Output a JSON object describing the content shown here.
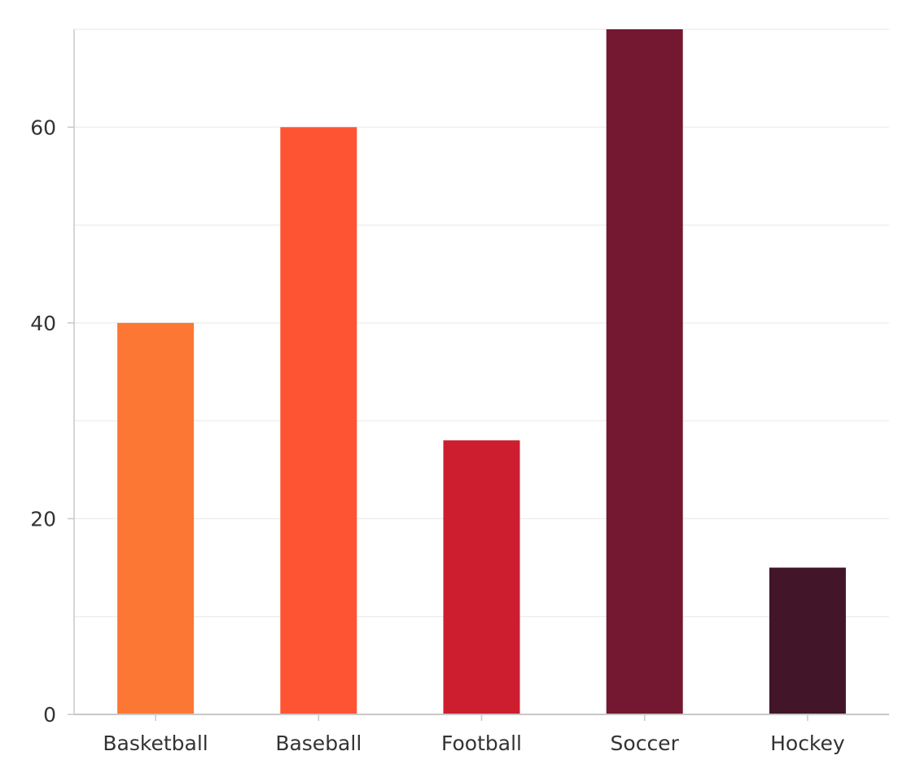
{
  "chart_data": {
    "type": "bar",
    "categories": [
      "Basketball",
      "Baseball",
      "Football",
      "Soccer",
      "Hockey"
    ],
    "values": [
      40,
      60,
      28,
      70,
      15
    ],
    "colors": [
      "#fd7734",
      "#ff5433",
      "#cc1e2e",
      "#731830",
      "#421528"
    ],
    "ylim": [
      0,
      70
    ],
    "yticks": [
      0,
      20,
      40,
      60
    ],
    "gridlines": [
      0,
      10,
      20,
      30,
      40,
      50,
      60,
      70
    ],
    "grid": true,
    "title": "",
    "xlabel": "",
    "ylabel": ""
  }
}
